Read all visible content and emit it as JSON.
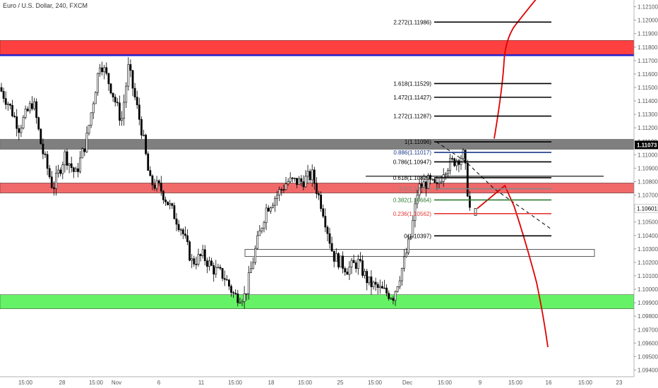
{
  "chart_data": {
    "type": "candlestick",
    "title": "Euro / U.S. Dollar, 240, FXCM",
    "symbol": "EURUSD",
    "timeframe": "240",
    "broker": "FXCM",
    "ylim": [
      1.0935,
      1.1215
    ],
    "y_ticks": [
      "1.12100",
      "1.12000",
      "1.11900",
      "1.11800",
      "1.11700",
      "1.11600",
      "1.11500",
      "1.11400",
      "1.11300",
      "1.11200",
      "1.11100",
      "1.11000",
      "1.10900",
      "1.10800",
      "1.10700",
      "1.10600",
      "1.10500",
      "1.10400",
      "1.10300",
      "1.10200",
      "1.10100",
      "1.10000",
      "1.09900",
      "1.09800",
      "1.09700",
      "1.09600",
      "1.09500",
      "1.09400"
    ],
    "x_ticks": [
      "15:00",
      "28",
      "15:00",
      "Nov",
      "6",
      "11",
      "15:00",
      "18",
      "15:00",
      "25",
      "15:00",
      "Dec",
      "15:00",
      "9",
      "15:00",
      "16",
      "15:00",
      "23"
    ],
    "current_price": "1.11073",
    "last_price": "1.10601",
    "last_candle_price": 1.10601,
    "zones": [
      {
        "name": "resistance-zone-top",
        "from": 1.11735,
        "to": 1.1185,
        "color": "#ff4040"
      },
      {
        "name": "resistance-zone-grey",
        "from": 1.1104,
        "to": 1.11115,
        "color": "#555555"
      },
      {
        "name": "support-zone-pink",
        "from": 1.10715,
        "to": 1.1079,
        "color": "#f06a6a"
      },
      {
        "name": "support-zone-green",
        "from": 1.09855,
        "to": 1.0996,
        "color": "#66f266"
      }
    ],
    "horizontal_lines": [
      {
        "name": "blue-line",
        "price": 1.1174,
        "color": "#2020cc"
      },
      {
        "name": "black-line",
        "price": 1.1084,
        "color": "#000000"
      },
      {
        "name": "outlined-box-level",
        "price": 1.1027,
        "color": "#333333"
      }
    ],
    "fib_levels": [
      {
        "label": "2.272(1.11986)",
        "price": 1.11986,
        "color": "#000000"
      },
      {
        "label": "1.618(1.11529)",
        "price": 1.11529,
        "color": "#000000"
      },
      {
        "label": "1.472(1.11427)",
        "price": 1.11427,
        "color": "#000000"
      },
      {
        "label": "1.272(1.11287)",
        "price": 1.11287,
        "color": "#000000"
      },
      {
        "label": "1(1.11096)",
        "price": 1.11096,
        "color": "#000000"
      },
      {
        "label": "0.886(1.11017)",
        "price": 1.11017,
        "color": "#1a3a8a"
      },
      {
        "label": "0.786(1.10947)",
        "price": 1.10947,
        "color": "#000000"
      },
      {
        "label": "0.618(1.10829)",
        "price": 1.10829,
        "color": "#000000"
      },
      {
        "label": "0.5(1.10747)",
        "price": 1.10747,
        "color": "#888888"
      },
      {
        "label": "0.382(1.10664)",
        "price": 1.10664,
        "color": "#2e7d32"
      },
      {
        "label": "0.236(1.10562)",
        "price": 1.10562,
        "color": "#e53935"
      },
      {
        "label": "0(1.10397)",
        "price": 1.10397,
        "color": "#000000"
      }
    ],
    "grid": false,
    "legend": "none",
    "colors": {
      "up": "#ffffff",
      "down": "#000000",
      "projection": "#e00000",
      "axis_text": "#555555"
    }
  }
}
